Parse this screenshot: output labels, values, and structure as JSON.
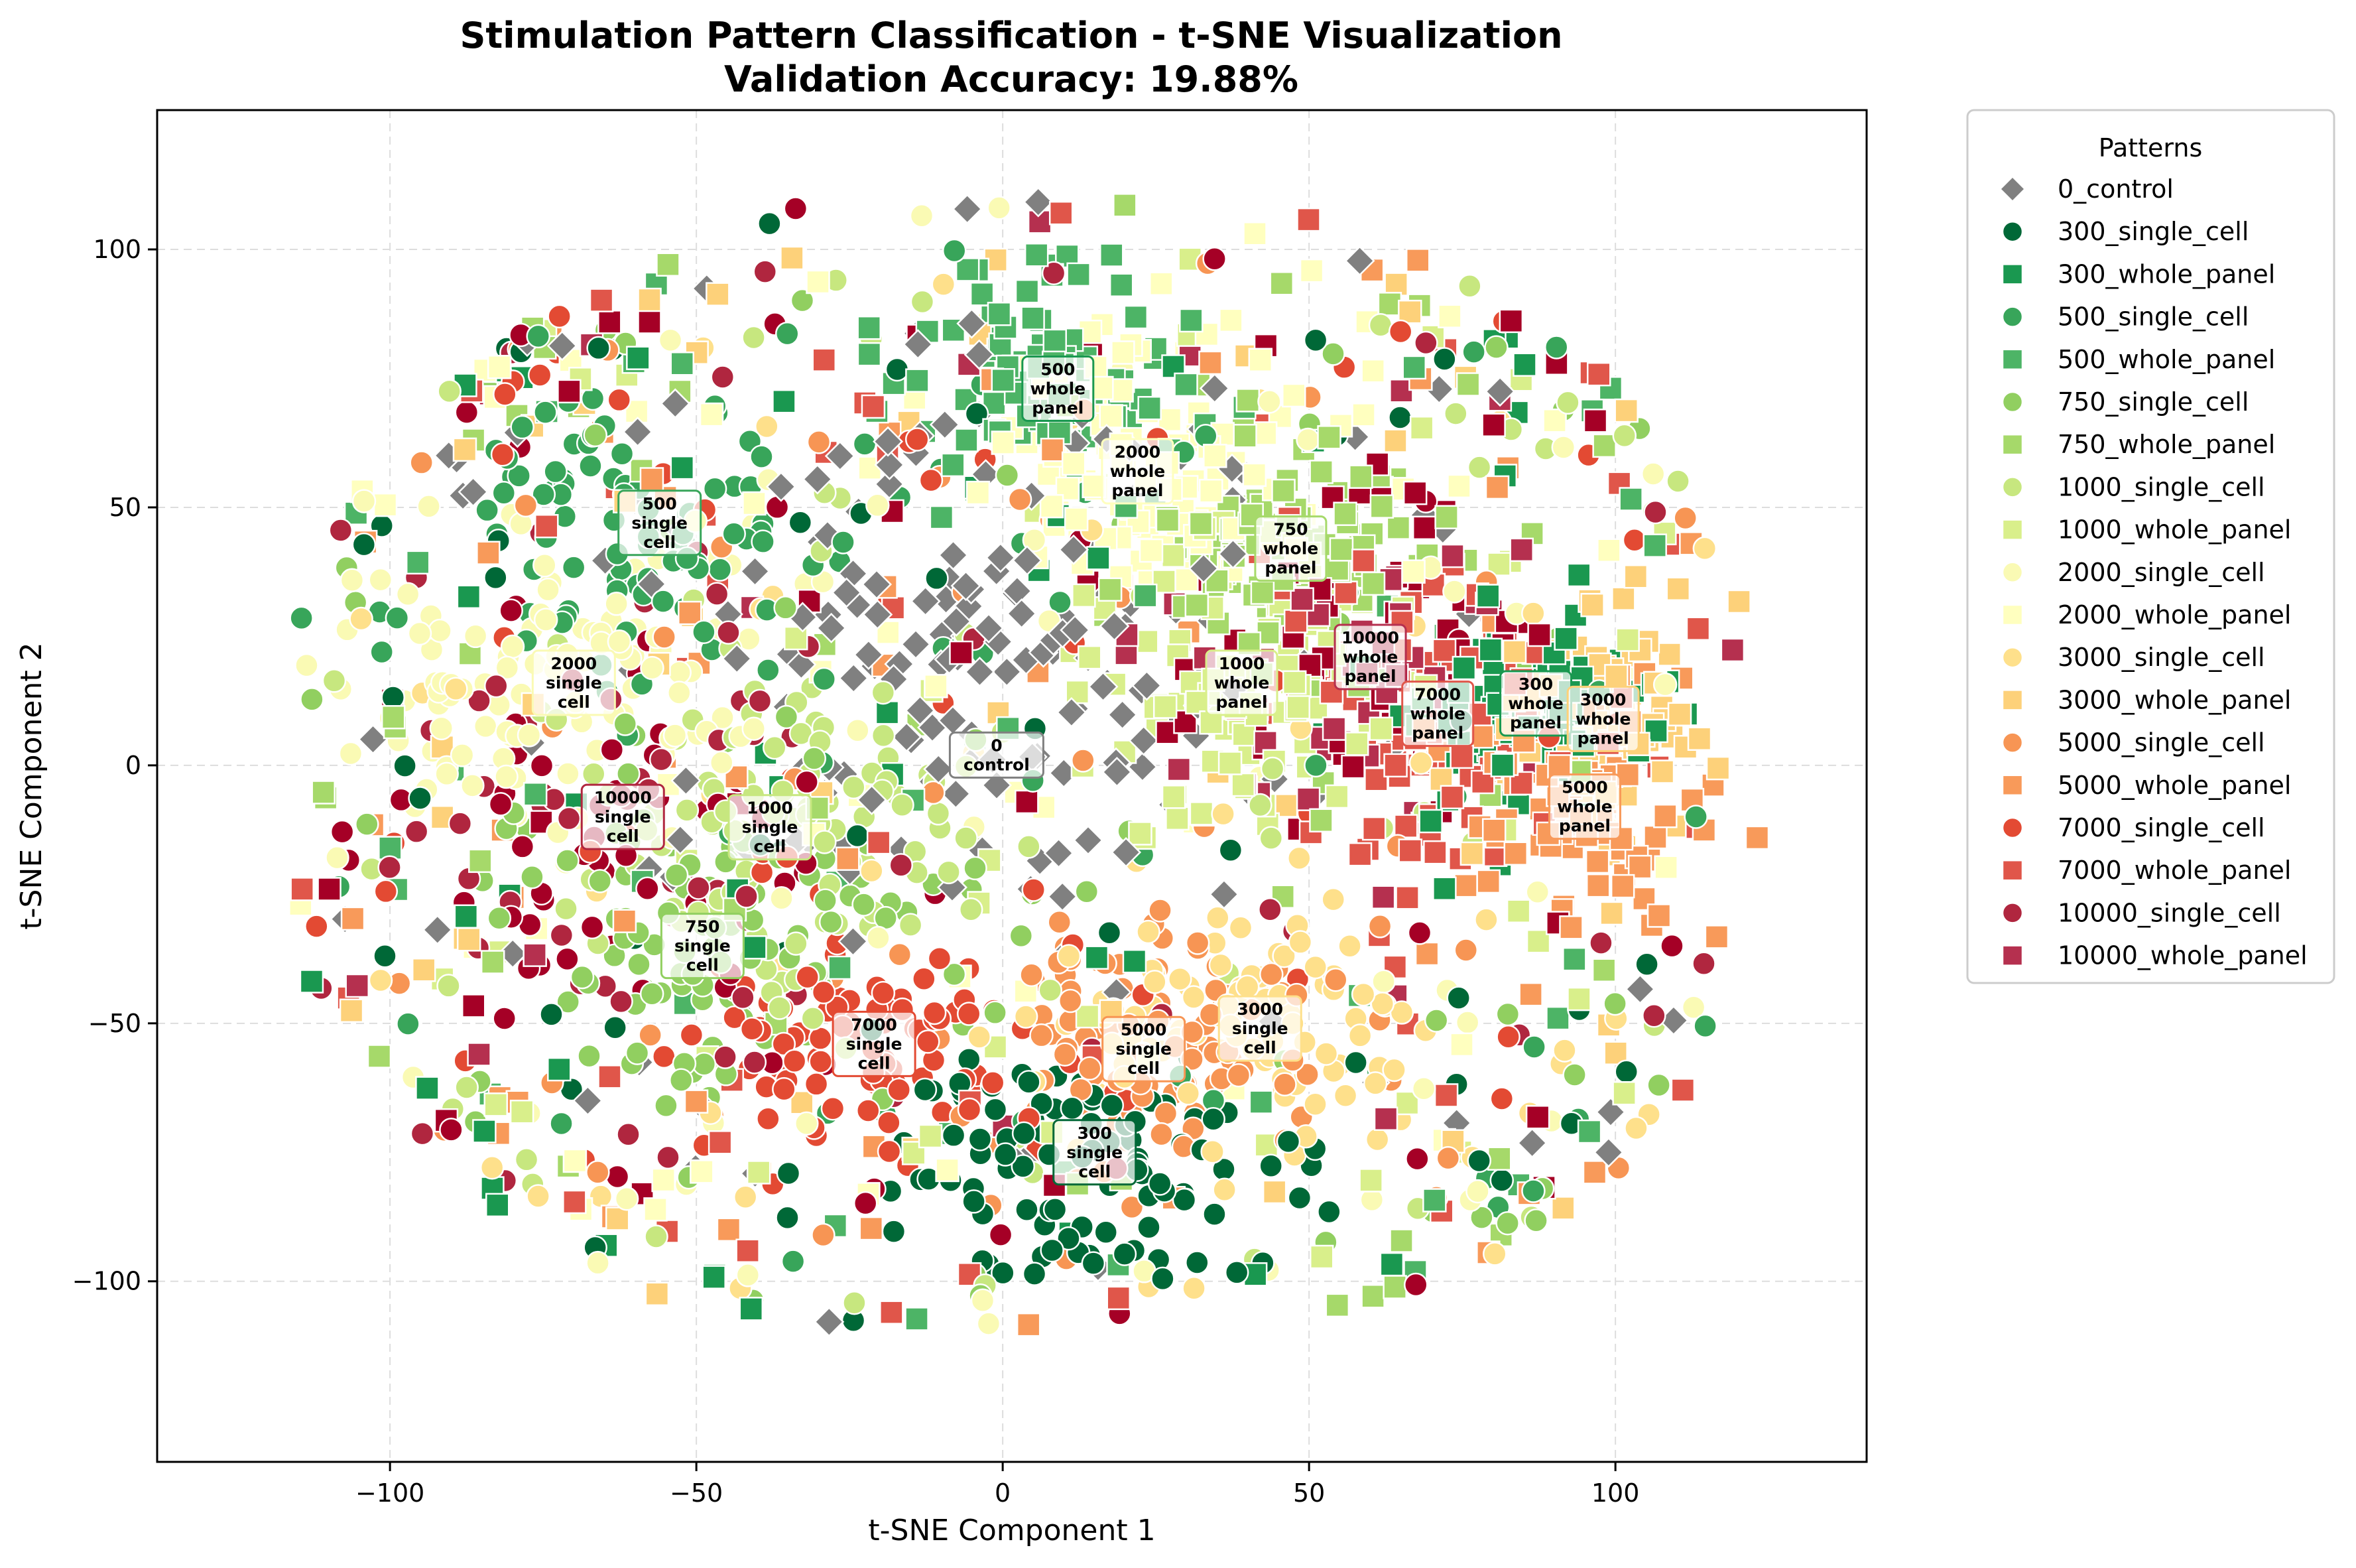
{
  "chart_data": {
    "type": "scatter",
    "title_line1": "Stimulation Pattern Classification - t-SNE Visualization",
    "title_line2": "Validation Accuracy: 19.88%",
    "xlabel": "t-SNE Component 1",
    "ylabel": "t-SNE Component 2",
    "xlim": [
      -138,
      141
    ],
    "ylim": [
      -135,
      127
    ],
    "xticks": [
      -100,
      -50,
      0,
      50,
      100
    ],
    "yticks": [
      -100,
      -50,
      0,
      50,
      100
    ],
    "xtick_labels": [
      "−100",
      "−50",
      "0",
      "50",
      "100"
    ],
    "ytick_labels": [
      "−100",
      "−50",
      "0",
      "50",
      "100"
    ],
    "grid": true,
    "legend_title": "Patterns",
    "legend_position": "outside-right-top",
    "series": [
      {
        "name": "0_control",
        "marker": "diamond",
        "color": "#808080",
        "center": [
          -2,
          20
        ],
        "spread": [
          45,
          45
        ],
        "n": 210
      },
      {
        "name": "300_single_cell",
        "marker": "circle",
        "color": "#006837",
        "center": [
          12,
          -77
        ],
        "spread": [
          30,
          22
        ],
        "n": 150
      },
      {
        "name": "300_whole_panel",
        "marker": "square",
        "color": "#1a9850",
        "center": [
          86,
          10
        ],
        "spread": [
          18,
          18
        ],
        "n": 140
      },
      {
        "name": "500_single_cell",
        "marker": "circle",
        "color": "#38a55a",
        "center": [
          -56,
          48
        ],
        "spread": [
          28,
          28
        ],
        "n": 140
      },
      {
        "name": "500_whole_panel",
        "marker": "square",
        "color": "#4db466",
        "center": [
          8,
          74
        ],
        "spread": [
          22,
          20
        ],
        "n": 140
      },
      {
        "name": "750_single_cell",
        "marker": "circle",
        "color": "#91cf60",
        "center": [
          -49,
          -35
        ],
        "spread": [
          32,
          28
        ],
        "n": 150
      },
      {
        "name": "750_whole_panel",
        "marker": "square",
        "color": "#a6d96a",
        "center": [
          47,
          42
        ],
        "spread": [
          20,
          20
        ],
        "n": 140
      },
      {
        "name": "1000_single_cell",
        "marker": "circle",
        "color": "#c7e77f",
        "center": [
          -38,
          -12
        ],
        "spread": [
          30,
          28
        ],
        "n": 150
      },
      {
        "name": "1000_whole_panel",
        "marker": "square",
        "color": "#d9ef8b",
        "center": [
          39,
          16
        ],
        "spread": [
          22,
          22
        ],
        "n": 140
      },
      {
        "name": "2000_single_cell",
        "marker": "circle",
        "color": "#fafab4",
        "center": [
          -70,
          16
        ],
        "spread": [
          30,
          30
        ],
        "n": 160
      },
      {
        "name": "2000_whole_panel",
        "marker": "square",
        "color": "#ffffbf",
        "center": [
          22,
          58
        ],
        "spread": [
          25,
          22
        ],
        "n": 160
      },
      {
        "name": "3000_single_cell",
        "marker": "circle",
        "color": "#fee08b",
        "center": [
          41,
          -52
        ],
        "spread": [
          28,
          20
        ],
        "n": 140
      },
      {
        "name": "3000_whole_panel",
        "marker": "square",
        "color": "#fdd17a",
        "center": [
          98,
          10
        ],
        "spread": [
          16,
          20
        ],
        "n": 130
      },
      {
        "name": "5000_single_cell",
        "marker": "circle",
        "color": "#f79554",
        "center": [
          23,
          -56
        ],
        "spread": [
          28,
          22
        ],
        "n": 140
      },
      {
        "name": "5000_whole_panel",
        "marker": "square",
        "color": "#f89a5a",
        "center": [
          95,
          -8
        ],
        "spread": [
          18,
          26
        ],
        "n": 140
      },
      {
        "name": "7000_single_cell",
        "marker": "circle",
        "color": "#e34a33",
        "center": [
          -22,
          -55
        ],
        "spread": [
          28,
          22
        ],
        "n": 140
      },
      {
        "name": "7000_whole_panel",
        "marker": "square",
        "color": "#e0564a",
        "center": [
          71,
          10
        ],
        "spread": [
          22,
          28
        ],
        "n": 140
      },
      {
        "name": "10000_single_cell",
        "marker": "circle",
        "color": "#b0263f",
        "center": [
          -63,
          -10
        ],
        "spread": [
          30,
          40
        ],
        "n": 150
      },
      {
        "name": "10000_whole_panel",
        "marker": "square",
        "color": "#b5304f",
        "center": [
          60,
          21
        ],
        "spread": [
          30,
          30
        ],
        "n": 140
      }
    ],
    "extra_dark_red": "#a50026",
    "annotations": [
      {
        "lines": [
          "500",
          "whole",
          "panel"
        ],
        "x": 9,
        "y": 73,
        "edge": "#1a9850"
      },
      {
        "lines": [
          "2000",
          "whole",
          "panel"
        ],
        "x": 22,
        "y": 57,
        "edge": "#ffffbf"
      },
      {
        "lines": [
          "500",
          "single",
          "cell"
        ],
        "x": -56,
        "y": 47,
        "edge": "#38a55a"
      },
      {
        "lines": [
          "750",
          "whole",
          "panel"
        ],
        "x": 47,
        "y": 42,
        "edge": "#a6d96a"
      },
      {
        "lines": [
          "2000",
          "single",
          "cell"
        ],
        "x": -70,
        "y": 16,
        "edge": "#fafab4"
      },
      {
        "lines": [
          "10000",
          "whole",
          "panel"
        ],
        "x": 60,
        "y": 21,
        "edge": "#b5304f"
      },
      {
        "lines": [
          "1000",
          "whole",
          "panel"
        ],
        "x": 39,
        "y": 16,
        "edge": "#d9ef8b"
      },
      {
        "lines": [
          "7000",
          "whole",
          "panel"
        ],
        "x": 71,
        "y": 10,
        "edge": "#e0564a"
      },
      {
        "lines": [
          "300",
          "whole",
          "panel"
        ],
        "x": 87,
        "y": 12,
        "edge": "#1a9850"
      },
      {
        "lines": [
          "3000",
          "whole",
          "panel"
        ],
        "x": 98,
        "y": 9,
        "edge": "#fdd17a"
      },
      {
        "lines": [
          "0",
          "control"
        ],
        "x": -1,
        "y": 2,
        "edge": "#808080"
      },
      {
        "lines": [
          "5000",
          "whole",
          "panel"
        ],
        "x": 95,
        "y": -8,
        "edge": "#f89a5a"
      },
      {
        "lines": [
          "10000",
          "single",
          "cell"
        ],
        "x": -62,
        "y": -10,
        "edge": "#b0263f"
      },
      {
        "lines": [
          "1000",
          "single",
          "cell"
        ],
        "x": -38,
        "y": -12,
        "edge": "#c7e77f"
      },
      {
        "lines": [
          "750",
          "single",
          "cell"
        ],
        "x": -49,
        "y": -35,
        "edge": "#91cf60"
      },
      {
        "lines": [
          "7000",
          "single",
          "cell"
        ],
        "x": -21,
        "y": -54,
        "edge": "#e34a33"
      },
      {
        "lines": [
          "5000",
          "single",
          "cell"
        ],
        "x": 23,
        "y": -55,
        "edge": "#f79554"
      },
      {
        "lines": [
          "3000",
          "single",
          "cell"
        ],
        "x": 42,
        "y": -51,
        "edge": "#fee08b"
      },
      {
        "lines": [
          "300",
          "single",
          "cell"
        ],
        "x": 15,
        "y": -75,
        "edge": "#006837"
      }
    ]
  }
}
